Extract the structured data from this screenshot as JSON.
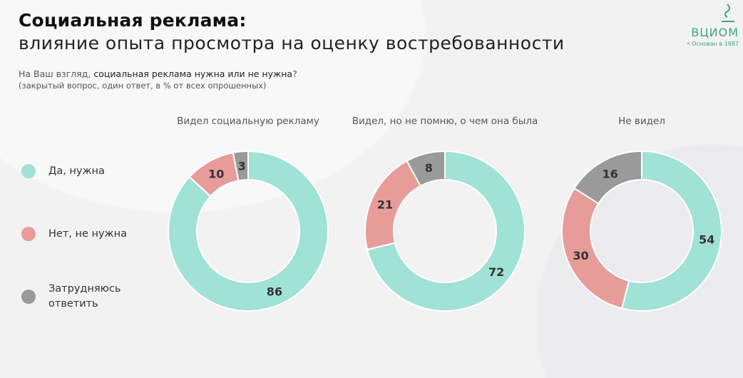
{
  "header": {
    "title": "Социальная реклама:",
    "subtitle": "влияние опыта просмотра на оценку востребованности",
    "question_prefix": "На Ваш взгляд, ",
    "question_bold": "социальная реклама нужна или не нужна",
    "question_suffix": "?",
    "note": "(закрытый вопрос, один ответ, в % от всех опрошенных)"
  },
  "logo": {
    "text": "ВЦИОМ",
    "sub": "• Основан в 1987"
  },
  "colors": {
    "yes": "#a0e2d5",
    "no": "#e89c9a",
    "hard": "#9a9a9a"
  },
  "chart_data": {
    "type": "pie",
    "variant": "donut",
    "categories": [
      "Да, нужна",
      "Нет, не нужна",
      "Затрудняюсь ответить"
    ],
    "legend_position": "left",
    "charts": [
      {
        "title": "Видел социальную рекламу",
        "values": [
          86,
          10,
          3
        ]
      },
      {
        "title": "Видел, но не помню, о чем она была",
        "values": [
          72,
          21,
          8
        ]
      },
      {
        "title": "Не видел",
        "values": [
          54,
          30,
          16
        ]
      }
    ]
  }
}
